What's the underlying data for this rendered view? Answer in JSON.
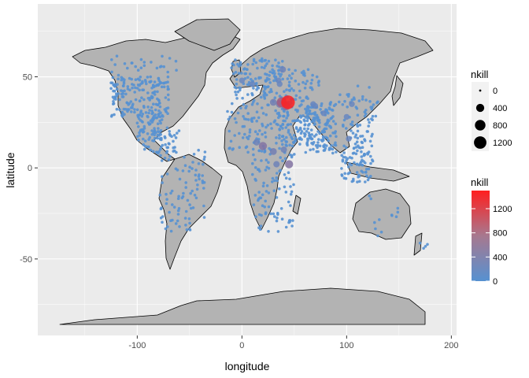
{
  "chart_data": {
    "type": "scatter",
    "subtype": "world-map-bubble",
    "xlabel": "longitude",
    "ylabel": "latitude",
    "xlim": [
      -195,
      205
    ],
    "ylim": [
      -92,
      90
    ],
    "x_ticks": [
      -100,
      0,
      100,
      200
    ],
    "y_ticks": [
      50,
      0,
      -50
    ],
    "x_tick_labels": [
      "-100",
      "0",
      "100",
      "200"
    ],
    "y_tick_labels": [
      "50",
      "0",
      "-50"
    ],
    "grid": true,
    "panel_background": "#ebebeb",
    "land_color": "#b3b3b3",
    "border_color": "#000000",
    "size_legend": {
      "title": "nkill",
      "breaks": [
        0,
        400,
        800,
        1200
      ],
      "labels": [
        "0",
        "400",
        "800",
        "1200"
      ]
    },
    "color_legend": {
      "title": "nkill",
      "low_color": "#5691d1",
      "high_color": "#ff1f1f",
      "range": [
        0,
        1500
      ],
      "breaks": [
        1200,
        800,
        400,
        0
      ],
      "labels": [
        "1200",
        "800",
        "400",
        "0"
      ]
    },
    "highlight_points": [
      {
        "lon": 44,
        "lat": 36,
        "nkill": 1500
      },
      {
        "lon": 38,
        "lat": 36,
        "nkill": 700
      },
      {
        "lon": 42,
        "lat": 34,
        "nkill": 500
      },
      {
        "lon": 36,
        "lat": 35,
        "nkill": 300
      },
      {
        "lon": 30,
        "lat": 36,
        "nkill": 250
      },
      {
        "lon": 20,
        "lat": 12,
        "nkill": 400
      },
      {
        "lon": 14,
        "lat": 14,
        "nkill": 200
      },
      {
        "lon": 30,
        "lat": 9,
        "nkill": 250
      },
      {
        "lon": 33,
        "lat": 2,
        "nkill": 200
      },
      {
        "lon": 45,
        "lat": 2,
        "nkill": 400
      },
      {
        "lon": 40,
        "lat": 10,
        "nkill": 200
      },
      {
        "lon": 36,
        "lat": 46,
        "nkill": 150
      },
      {
        "lon": 70,
        "lat": 34,
        "nkill": 150
      },
      {
        "lon": 68,
        "lat": 35,
        "nkill": 150
      },
      {
        "lon": 78,
        "lat": 30,
        "nkill": 150
      },
      {
        "lon": 102,
        "lat": 16,
        "nkill": 150
      },
      {
        "lon": 10,
        "lat": 46,
        "nkill": 150
      },
      {
        "lon": 39,
        "lat": 54,
        "nkill": 200
      },
      {
        "lon": 35,
        "lat": 48,
        "nkill": 150
      },
      {
        "lon": 0,
        "lat": 48,
        "nkill": 150
      },
      {
        "lon": 100,
        "lat": 28,
        "nkill": 150
      },
      {
        "lon": 105,
        "lat": 35,
        "nkill": 150
      }
    ]
  }
}
